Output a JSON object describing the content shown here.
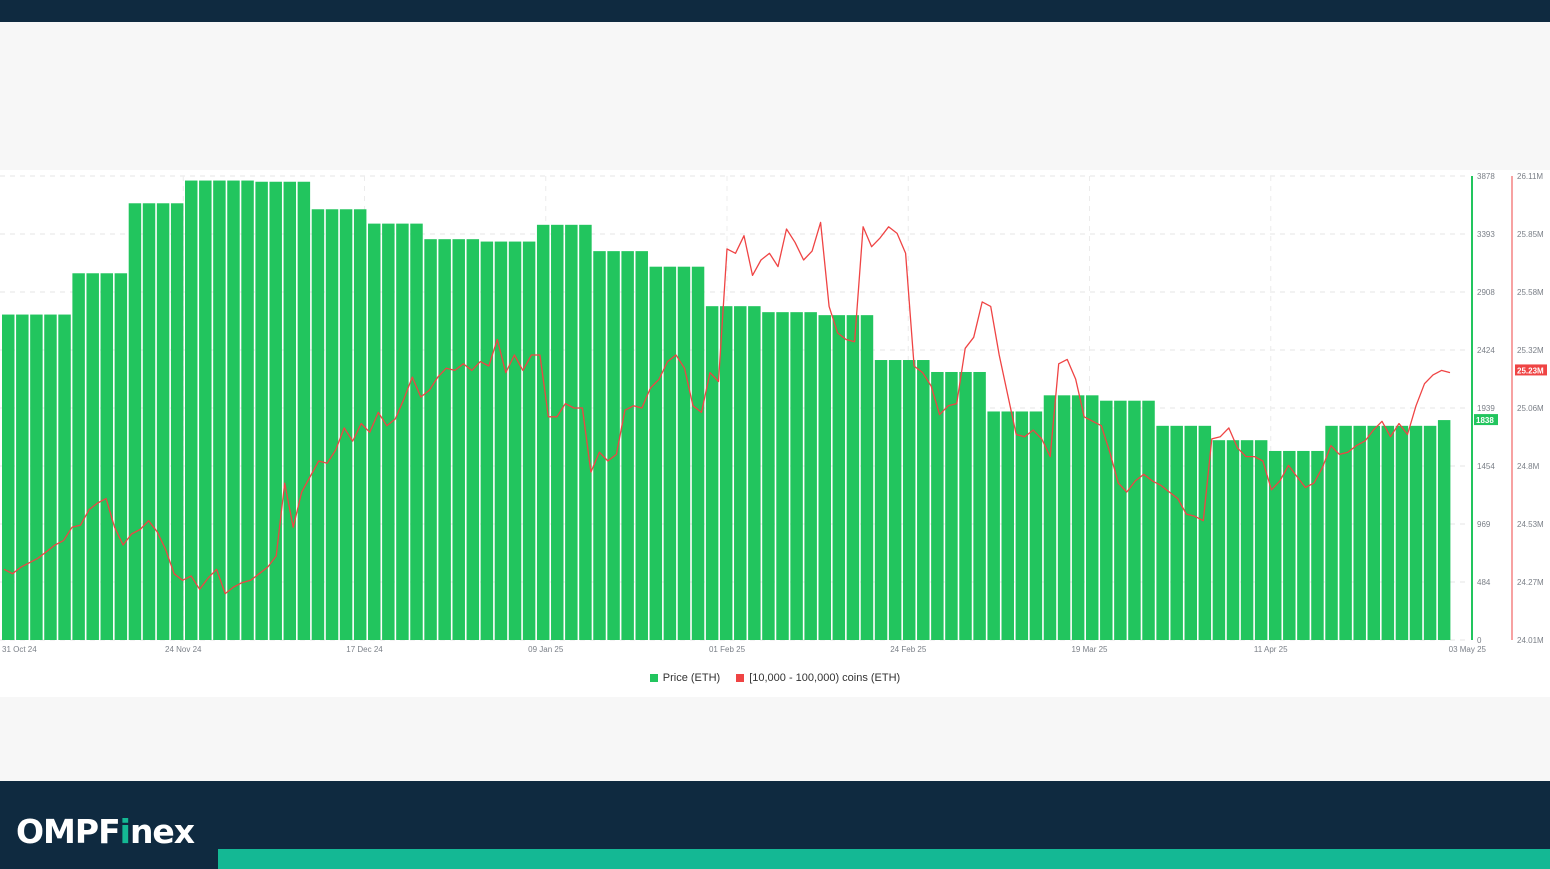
{
  "brand": {
    "logo_part1": "OMPF",
    "logo_accent": "i",
    "logo_part2": "nex",
    "accent_color": "#14b894",
    "bar_color": "#0f2a40"
  },
  "chart_data": {
    "type": "bar+line",
    "x_tick_labels": [
      "31 Oct 24",
      "24 Nov 24",
      "17 Dec 24",
      "09 Jan 25",
      "01 Feb 25",
      "24 Feb 25",
      "19 Mar 25",
      "11 Apr 25",
      "03 May 25"
    ],
    "y_left": {
      "ticks": [
        3878,
        3393,
        2908,
        2424,
        1939,
        1454,
        969,
        484,
        0
      ],
      "range": [
        0,
        3878
      ],
      "color": "#22c55e",
      "current_label": "1838"
    },
    "y_right": {
      "ticks": [
        "26.11M",
        "25.85M",
        "25.58M",
        "25.32M",
        "25.06M",
        "24.8M",
        "24.53M",
        "24.27M",
        "24.01M"
      ],
      "range": [
        24.01,
        26.11
      ],
      "unit": "M",
      "color": "#ef4444",
      "current_label": "25.23M"
    },
    "grid": true,
    "legend_position": "bottom-center",
    "series": [
      {
        "name": "Price (ETH)",
        "type": "bar",
        "color": "#22c55e",
        "weekly_values": [
          2720,
          2720,
          2720,
          2720,
          2720,
          3065,
          3065,
          3065,
          3065,
          3650,
          3650,
          3650,
          3650,
          3840,
          3840,
          3840,
          3840,
          3840,
          3830,
          3830,
          3830,
          3830,
          3600,
          3600,
          3600,
          3600,
          3480,
          3480,
          3480,
          3480,
          3350,
          3350,
          3350,
          3350,
          3330,
          3330,
          3330,
          3330,
          3470,
          3470,
          3470,
          3470,
          3250,
          3250,
          3250,
          3250,
          3120,
          3120,
          3120,
          3120,
          2790,
          2790,
          2790,
          2790,
          2740,
          2740,
          2740,
          2740,
          2715,
          2715,
          2715,
          2715,
          2340,
          2340,
          2340,
          2340,
          2240,
          2240,
          2240,
          2240,
          1910,
          1910,
          1910,
          1910,
          2045,
          2045,
          2045,
          2045,
          2000,
          2000,
          2000,
          2000,
          1790,
          1790,
          1790,
          1790,
          1670,
          1670,
          1670,
          1670,
          1580,
          1580,
          1580,
          1580,
          1790,
          1790,
          1790,
          1790,
          1790,
          1790,
          1790,
          1790,
          1838
        ]
      },
      {
        "name": "[10,000 - 100,000) coins (ETH)",
        "type": "line",
        "color": "#ef4444",
        "unit": "M",
        "values": [
          24.33,
          24.31,
          24.34,
          24.36,
          24.38,
          24.41,
          24.44,
          24.46,
          24.52,
          24.53,
          24.6,
          24.63,
          24.65,
          24.52,
          24.44,
          24.49,
          24.51,
          24.55,
          24.5,
          24.42,
          24.31,
          24.28,
          24.3,
          24.24,
          24.29,
          24.33,
          24.22,
          24.25,
          24.27,
          24.28,
          24.31,
          24.34,
          24.39,
          24.72,
          24.52,
          24.68,
          24.75,
          24.82,
          24.81,
          24.87,
          24.97,
          24.91,
          24.99,
          24.95,
          25.04,
          24.98,
          25.01,
          25.1,
          25.2,
          25.11,
          25.14,
          25.2,
          25.24,
          25.23,
          25.26,
          25.23,
          25.27,
          25.25,
          25.37,
          25.22,
          25.3,
          25.23,
          25.3,
          25.3,
          25.02,
          25.02,
          25.08,
          25.06,
          25.06,
          24.77,
          24.86,
          24.82,
          24.85,
          25.05,
          25.07,
          25.06,
          25.15,
          25.19,
          25.27,
          25.3,
          25.24,
          25.07,
          25.04,
          25.22,
          25.18,
          25.78,
          25.76,
          25.84,
          25.66,
          25.73,
          25.76,
          25.7,
          25.87,
          25.81,
          25.73,
          25.77,
          25.9,
          25.52,
          25.4,
          25.37,
          25.36,
          25.88,
          25.79,
          25.83,
          25.88,
          25.85,
          25.76,
          25.25,
          25.22,
          25.16,
          25.03,
          25.07,
          25.08,
          25.33,
          25.38,
          25.54,
          25.52,
          25.3,
          25.12,
          24.94,
          24.93,
          24.96,
          24.92,
          24.84,
          25.26,
          25.28,
          25.19,
          25.02,
          25.0,
          24.98,
          24.86,
          24.72,
          24.68,
          24.73,
          24.76,
          24.73,
          24.71,
          24.68,
          24.65,
          24.58,
          24.57,
          24.55,
          24.92,
          24.93,
          24.97,
          24.88,
          24.84,
          24.84,
          24.82,
          24.69,
          24.73,
          24.8,
          24.75,
          24.7,
          24.72,
          24.79,
          24.89,
          24.85,
          24.86,
          24.89,
          24.91,
          24.96,
          25.0,
          24.93,
          24.99,
          24.94,
          25.07,
          25.17,
          25.21,
          25.23,
          25.22
        ]
      }
    ]
  }
}
